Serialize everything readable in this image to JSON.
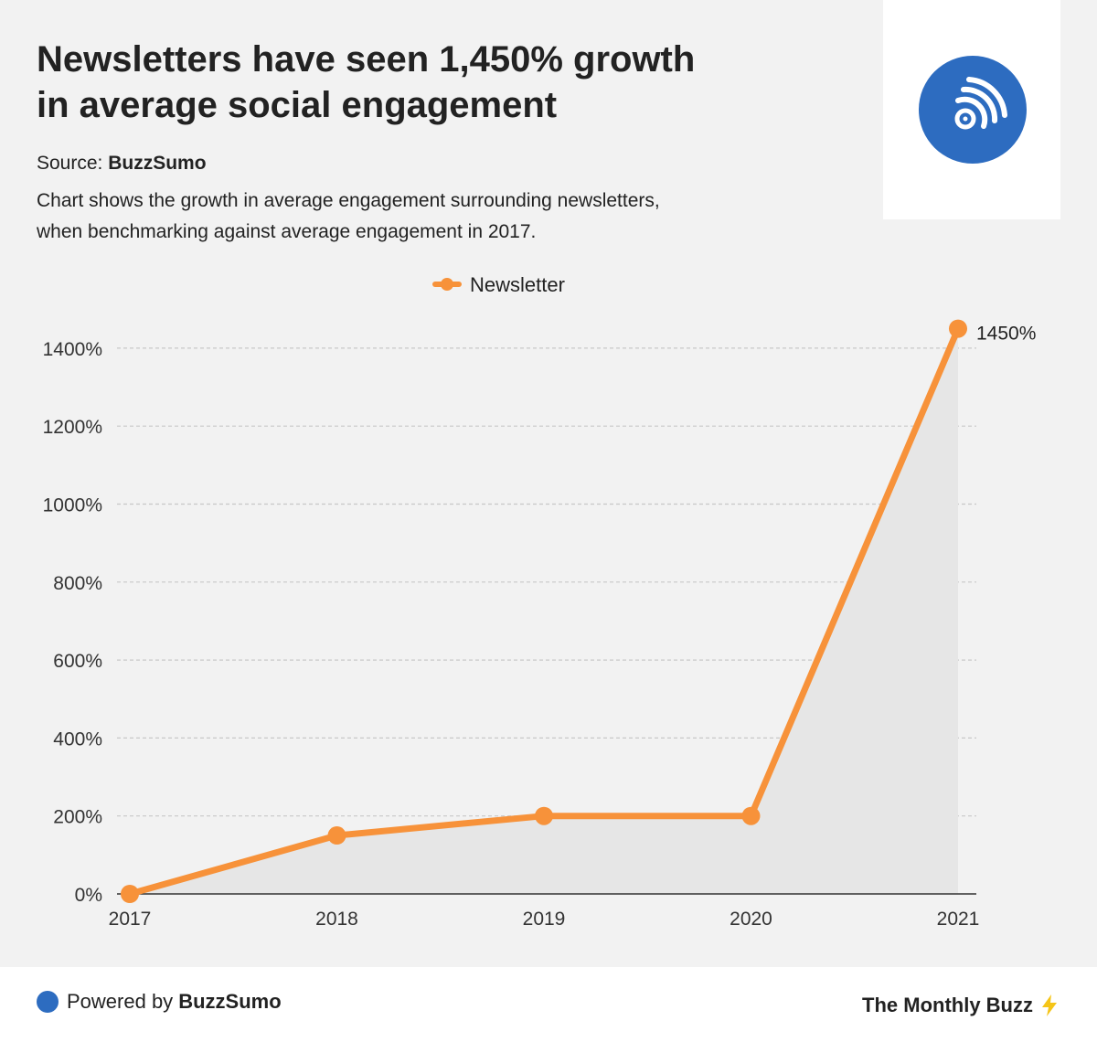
{
  "header": {
    "title_line1": "Newsletters have seen 1,450% growth",
    "title_line2": "in average social engagement",
    "source_label": "Source:",
    "source_name": "BuzzSumo",
    "description_line1": "Chart shows the growth in average engagement surrounding newsletters,",
    "description_line2": "when benchmarking against average engagement in 2017.",
    "logo_icon": "rss-signal-icon",
    "logo_color": "#2d6cc0"
  },
  "chart_data": {
    "type": "line",
    "title": "Newsletters have seen 1,450% growth in average social engagement",
    "x": [
      "2017",
      "2018",
      "2019",
      "2020",
      "2021"
    ],
    "series": [
      {
        "name": "Newsletter",
        "values": [
          0,
          150,
          200,
          200,
          1450
        ],
        "color": "#f7923a"
      }
    ],
    "yticks": [
      0,
      200,
      400,
      600,
      800,
      1000,
      1200,
      1400
    ],
    "ytick_labels": [
      "0%",
      "200%",
      "400%",
      "600%",
      "800%",
      "1000%",
      "1200%",
      "1400%"
    ],
    "ylim": [
      0,
      1450
    ],
    "area_fill": "#e6e6e6",
    "grid": true,
    "legend_position": "top-center",
    "end_label": "1450%",
    "xlabel": "",
    "ylabel": ""
  },
  "footer": {
    "powered_prefix": "Powered by",
    "powered_name": "BuzzSumo",
    "brand": "The Monthly Buzz",
    "brand_icon": "lightning-bolt-icon"
  }
}
